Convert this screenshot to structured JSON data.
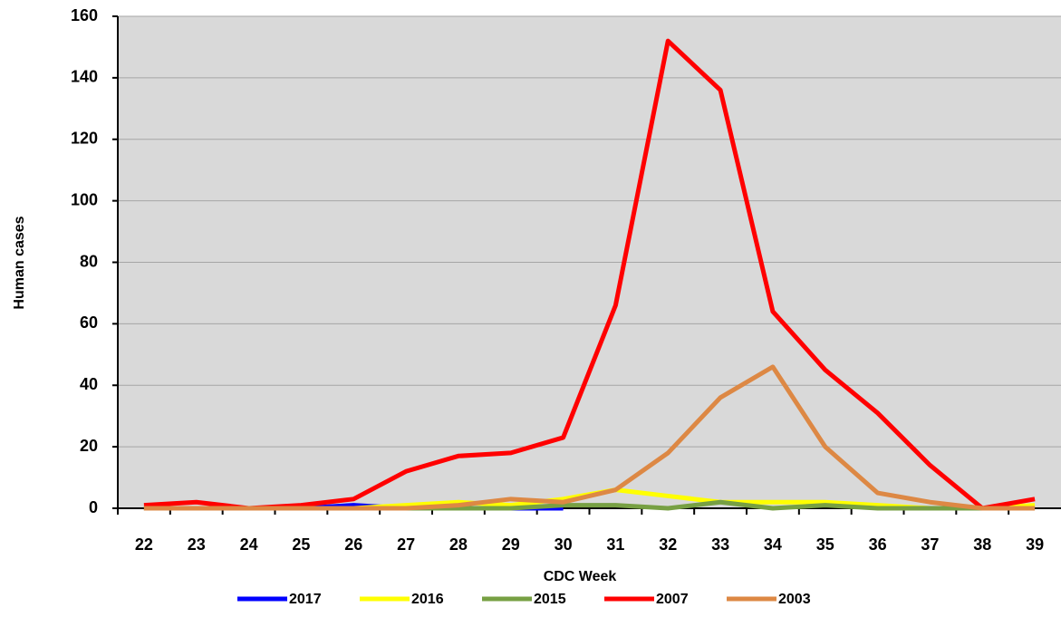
{
  "chart_data": {
    "type": "line",
    "x_label": "CDC Week",
    "y_label": "Human cases",
    "categories": [
      "22",
      "23",
      "24",
      "25",
      "26",
      "27",
      "28",
      "29",
      "30",
      "31",
      "32",
      "33",
      "34",
      "35",
      "36",
      "37",
      "38",
      "39"
    ],
    "series": [
      {
        "name": "2017",
        "color": "#0000ff",
        "values": [
          0,
          0,
          0,
          0,
          1,
          0,
          0,
          0,
          0,
          null,
          null,
          null,
          null,
          null,
          null,
          null,
          null,
          null
        ]
      },
      {
        "name": "2016",
        "color": "#ffff00",
        "values": [
          0,
          0,
          0,
          0,
          0,
          1,
          2,
          1,
          3,
          6,
          4,
          2,
          2,
          2,
          1,
          0,
          0,
          1
        ]
      },
      {
        "name": "2015",
        "color": "#77a043",
        "values": [
          0,
          0,
          0,
          0,
          0,
          0,
          0,
          0,
          1,
          1,
          0,
          2,
          0,
          1,
          0,
          0,
          0,
          0
        ]
      },
      {
        "name": "2007",
        "color": "#ff0000",
        "values": [
          1,
          2,
          0,
          1,
          3,
          12,
          17,
          18,
          23,
          66,
          152,
          136,
          64,
          45,
          31,
          14,
          0,
          3
        ]
      },
      {
        "name": "2003",
        "color": "#dd8844",
        "values": [
          0,
          0,
          0,
          0,
          0,
          0,
          1,
          3,
          2,
          6,
          18,
          36,
          46,
          20,
          5,
          2,
          0,
          0
        ]
      }
    ],
    "ylim": [
      0,
      160
    ],
    "yticks": [
      0,
      20,
      40,
      60,
      80,
      100,
      120,
      140,
      160
    ],
    "grid": true,
    "legend": "bottom"
  }
}
